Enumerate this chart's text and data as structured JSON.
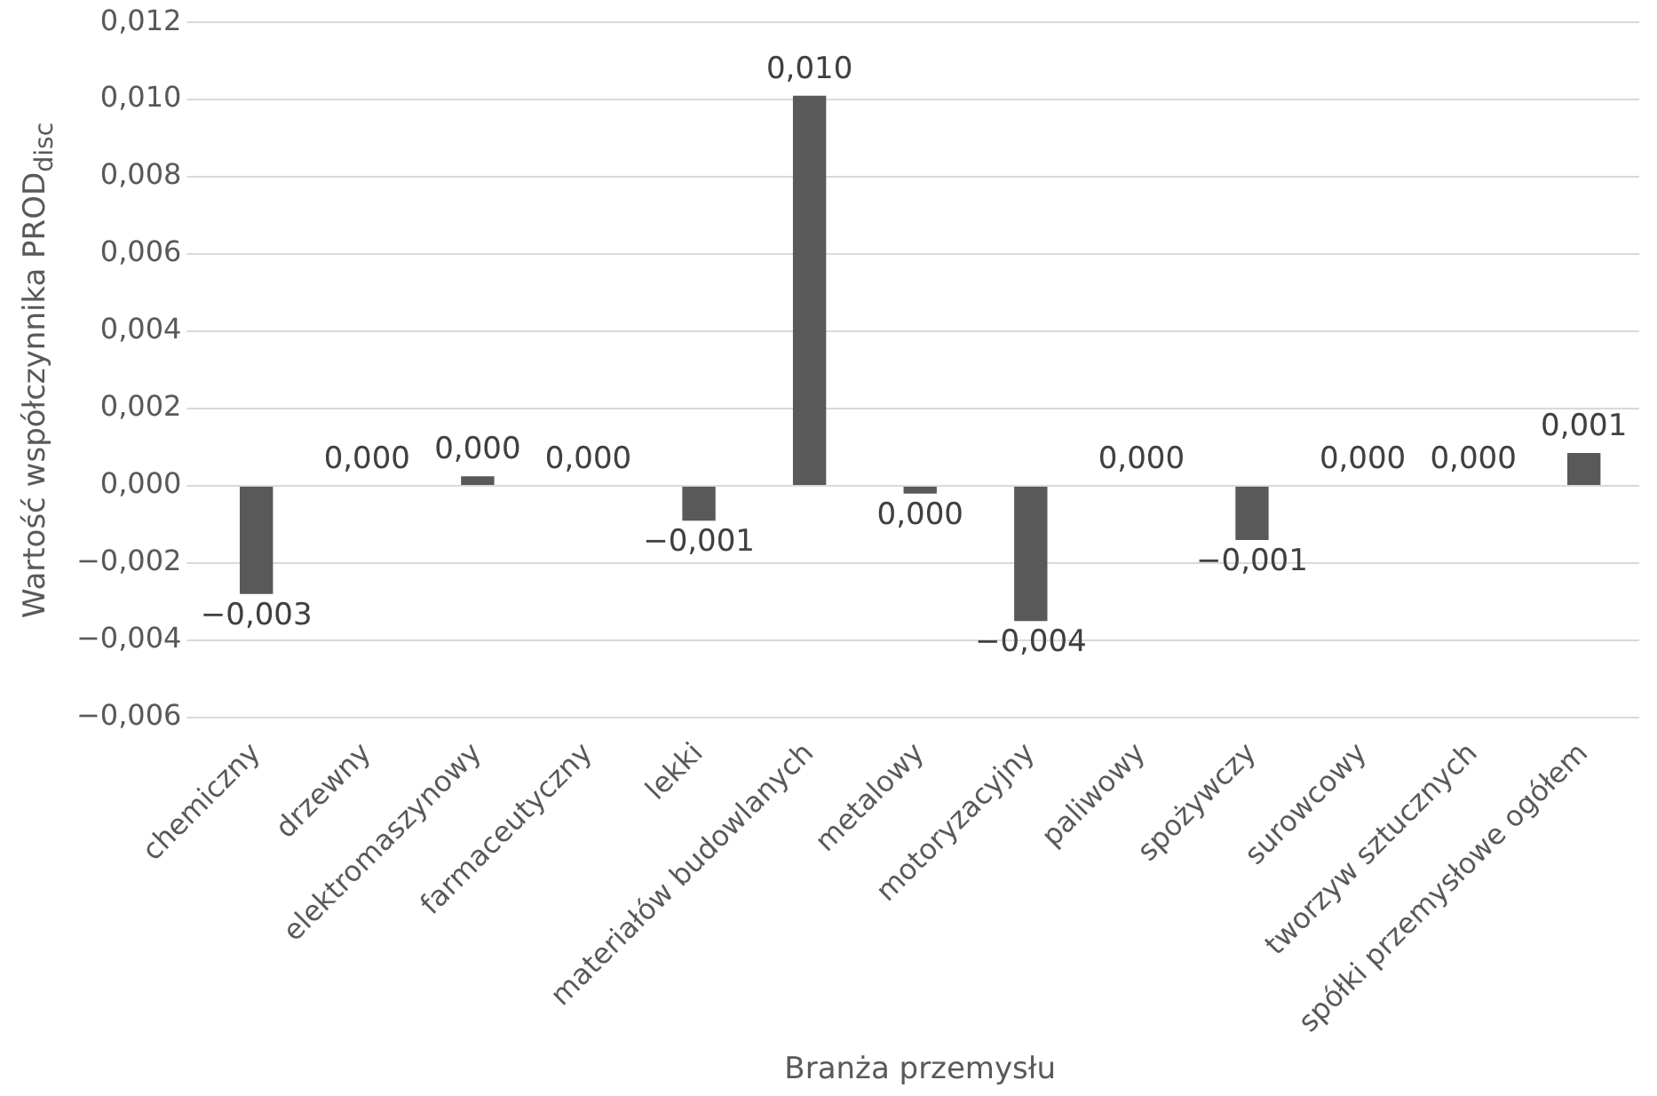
{
  "chart_data": {
    "type": "bar",
    "xlabel": "Branża przemysłu",
    "ylabel": "Wartość współczynnika PROD$_{disc}$",
    "categories": [
      "chemiczny",
      "drzewny",
      "elektromaszynowy",
      "farmaceutyczny",
      "lekki",
      "materiałów budowlanych",
      "metalowy",
      "motoryzacyjny",
      "paliwowy",
      "spożywczy",
      "surowcowy",
      "tworzyw sztucznych",
      "spółki przemysłowe ogółem"
    ],
    "values": [
      -0.0028,
      0,
      0.00025,
      0,
      -0.0009,
      0.0101,
      -0.0002,
      -0.0035,
      0,
      -0.0014,
      0,
      0,
      0.00085
    ],
    "value_labels": [
      "−0,003",
      "0,000",
      "0,000",
      "0,000",
      "−0,001",
      "0,010",
      "0,000",
      "−0,004",
      "0,000",
      "−0,001",
      "0,000",
      "0,000",
      "0,001"
    ],
    "color": "#595959",
    "ylim": [
      -0.006,
      0.012
    ],
    "yticks": [
      {
        "value": -0.006,
        "label": "−0,006"
      },
      {
        "value": -0.004,
        "label": "−0,004"
      },
      {
        "value": -0.002,
        "label": "−0,002"
      },
      {
        "value": 0,
        "label": "0,000"
      },
      {
        "value": 0.002,
        "label": "0,002"
      },
      {
        "value": 0.004,
        "label": "0,004"
      },
      {
        "value": 0.006,
        "label": "0,006"
      },
      {
        "value": 0.008,
        "label": "0,008"
      },
      {
        "value": 0.01,
        "label": "0,010"
      },
      {
        "value": 0.012,
        "label": "0,012"
      }
    ],
    "grid": "y",
    "legend": false
  }
}
